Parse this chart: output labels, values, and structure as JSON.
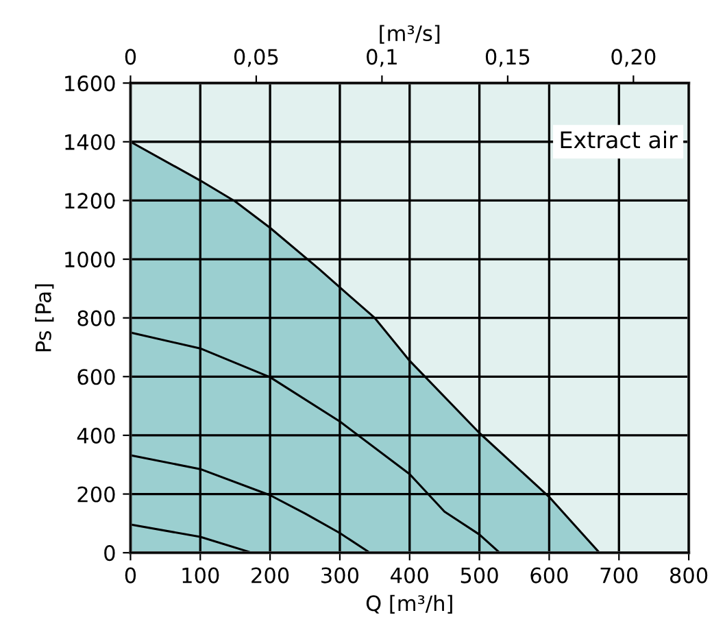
{
  "chart_data": {
    "type": "line",
    "xlabel": "Q [m³/h]",
    "ylabel": "Ps [Pa]",
    "x2label": "[m³/s]",
    "annotations": [
      "Extract air"
    ],
    "series": [
      {
        "type": "area",
        "color": "#9bcfd0",
        "x": [
          0,
          100,
          150,
          200,
          270,
          300,
          350,
          400,
          500,
          600,
          672
        ],
        "values": [
          1400,
          1268,
          1197,
          1107,
          967,
          904,
          800,
          654,
          408,
          190,
          0
        ]
      },
      {
        "color": "#000000",
        "x": [
          0,
          100,
          200,
          300,
          400,
          450,
          500,
          529
        ],
        "values": [
          750,
          696,
          598,
          447,
          268,
          140,
          62,
          0
        ]
      },
      {
        "color": "#000000",
        "x": [
          0,
          100,
          200,
          250,
          300,
          343
        ],
        "values": [
          332,
          285,
          196,
          134,
          67,
          0
        ]
      },
      {
        "color": "#000000",
        "x": [
          0,
          100,
          174
        ],
        "values": [
          96,
          54,
          0
        ]
      }
    ],
    "xlim": [
      0,
      800
    ],
    "ylim": [
      0,
      1600
    ],
    "xticks": [
      0,
      100,
      200,
      300,
      400,
      500,
      600,
      700,
      800
    ],
    "yticks": [
      0,
      200,
      400,
      600,
      800,
      1000,
      1200,
      1400,
      1600
    ],
    "x2lim": [
      0,
      0.222
    ],
    "x2ticks": [
      0,
      {
        "value": 0.05,
        "label": "0,05"
      },
      {
        "value": 0.1,
        "label": "0,1"
      },
      {
        "value": 0.15,
        "label": "0,15"
      },
      {
        "value": 0.2,
        "label": "0,20"
      }
    ],
    "grid": true,
    "line_style": "solid",
    "marker": "none"
  }
}
